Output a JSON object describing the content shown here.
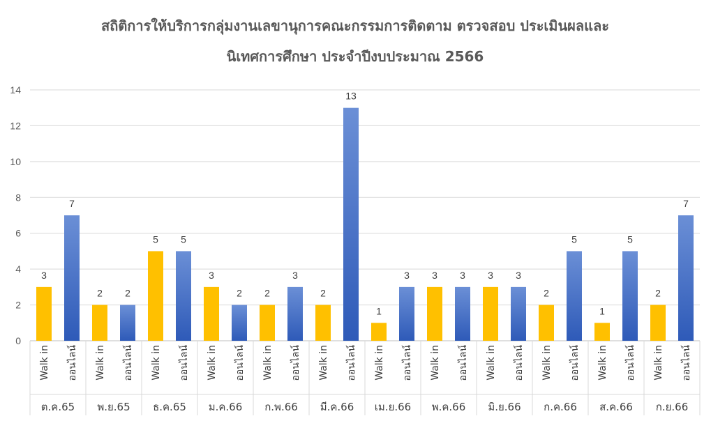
{
  "chart_data": {
    "type": "bar",
    "title_line1": "สถิติการให้บริการกลุ่มงานเลขานุการคณะกรรมการติดตาม ตรวจสอบ ประเมินผลและ",
    "title_line2": "นิเทศการศึกษา ประจำปีงบประมาณ 2566",
    "ylim": [
      0,
      14
    ],
    "yticks": [
      "0",
      "2",
      "4",
      "6",
      "8",
      "10",
      "12",
      "14"
    ],
    "grid": true,
    "legend": "none",
    "colors": {
      "walkin": "#FFC000",
      "online": "#4472C4"
    },
    "sub_labels": [
      "Walk in",
      "ออนไลน์"
    ],
    "categories": [
      "ต.ค.65",
      "พ.ย.65",
      "ธ.ค.65",
      "ม.ค.66",
      "ก.พ.66",
      "มี.ค.66",
      "เม.ย.66",
      "พ.ค.66",
      "มิ.ย.66",
      "ก.ค.66",
      "ส.ค.66",
      "ก.ย.66"
    ],
    "series": [
      {
        "values": [
          3,
          2,
          5,
          3,
          2,
          2,
          1,
          3,
          3,
          2,
          1,
          2
        ]
      },
      {
        "values": [
          7,
          2,
          5,
          2,
          3,
          13,
          3,
          3,
          3,
          5,
          5,
          7
        ]
      }
    ]
  }
}
